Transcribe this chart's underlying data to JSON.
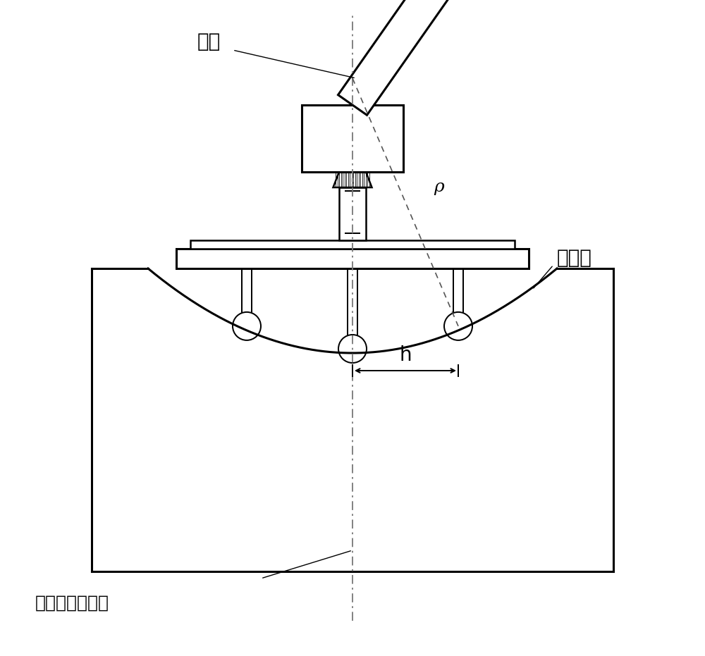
{
  "bg_color": "#ffffff",
  "line_color": "#000000",
  "label_qiuxin": "球心",
  "label_qiumian": "球面镜",
  "label_guangzhou": "光轴（对称轴）",
  "label_h": "h",
  "label_rho": "ρ",
  "font_size_chinese": 20,
  "font_size_label": 18,
  "figsize": [
    10.0,
    9.31
  ]
}
